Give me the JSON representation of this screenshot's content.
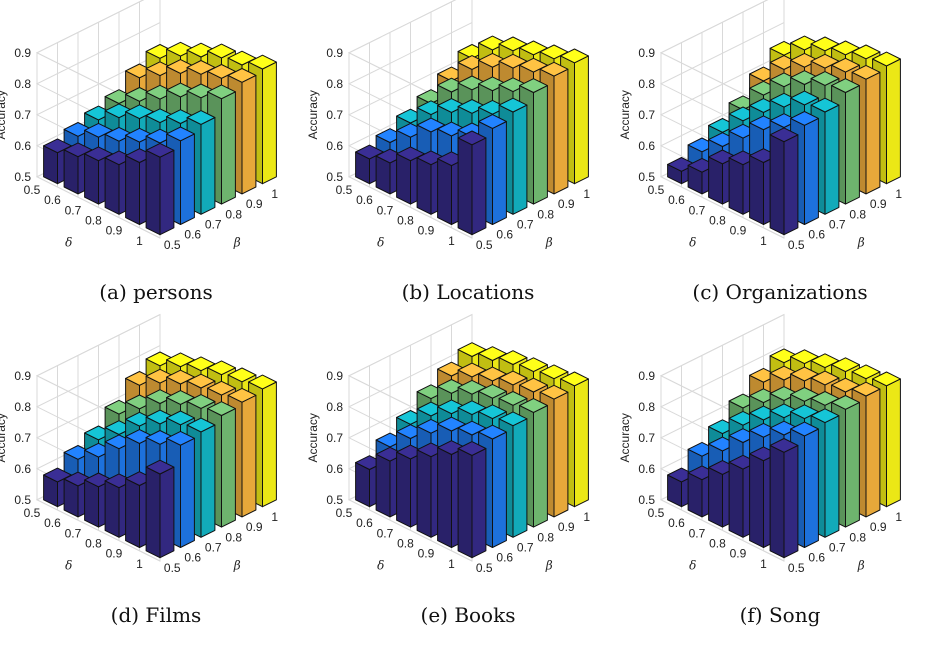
{
  "figure": {
    "colors": [
      "#352a87",
      "#1f77e8",
      "#13b3c3",
      "#74bd74",
      "#f3b13d",
      "#f7f317"
    ],
    "edge_color": "#111111",
    "grid_color": "#d9d9d9"
  },
  "chart_data": [
    {
      "type": "bar3d",
      "caption": "(a) persons",
      "zlabel": "Accuracy",
      "xlabel": "β",
      "ylabel": "δ",
      "beta": [
        0.5,
        0.6,
        0.7,
        0.8,
        0.9,
        1
      ],
      "delta": [
        1,
        0.9,
        0.8,
        0.7,
        0.6,
        0.5
      ],
      "zlim": [
        0.5,
        0.9
      ],
      "zticks": [
        0.5,
        0.6,
        0.7,
        0.8,
        0.9
      ],
      "grid": true,
      "values": [
        [
          0.75,
          0.77,
          0.79,
          0.84,
          0.86,
          0.87
        ],
        [
          0.7,
          0.73,
          0.76,
          0.81,
          0.84,
          0.85
        ],
        [
          0.66,
          0.7,
          0.73,
          0.78,
          0.82,
          0.84
        ],
        [
          0.64,
          0.67,
          0.71,
          0.74,
          0.79,
          0.81
        ],
        [
          0.62,
          0.65,
          0.68,
          0.7,
          0.75,
          0.78
        ],
        [
          0.6,
          0.62,
          0.64,
          0.66,
          0.71,
          0.74
        ]
      ]
    },
    {
      "type": "bar3d",
      "caption": "(b) Locations",
      "zlabel": "Accuracy",
      "xlabel": "β",
      "ylabel": "δ",
      "beta": [
        0.5,
        0.6,
        0.7,
        0.8,
        0.9,
        1
      ],
      "delta": [
        1,
        0.9,
        0.8,
        0.7,
        0.6,
        0.5
      ],
      "zlim": [
        0.5,
        0.9
      ],
      "zticks": [
        0.5,
        0.6,
        0.7,
        0.8,
        0.9
      ],
      "grid": true,
      "values": [
        [
          0.79,
          0.81,
          0.83,
          0.86,
          0.88,
          0.89
        ],
        [
          0.69,
          0.75,
          0.79,
          0.83,
          0.86,
          0.87
        ],
        [
          0.66,
          0.72,
          0.76,
          0.8,
          0.84,
          0.85
        ],
        [
          0.64,
          0.7,
          0.73,
          0.77,
          0.81,
          0.83
        ],
        [
          0.6,
          0.65,
          0.69,
          0.73,
          0.77,
          0.8
        ],
        [
          0.58,
          0.6,
          0.63,
          0.66,
          0.7,
          0.74
        ]
      ]
    },
    {
      "type": "bar3d",
      "caption": "(c) Organizations",
      "zlabel": "Accuracy",
      "xlabel": "β",
      "ylabel": "δ",
      "beta": [
        0.5,
        0.6,
        0.7,
        0.8,
        0.9,
        1
      ],
      "delta": [
        1,
        0.9,
        0.8,
        0.7,
        0.6,
        0.5
      ],
      "zlim": [
        0.5,
        0.9
      ],
      "zticks": [
        0.5,
        0.6,
        0.7,
        0.8,
        0.9
      ],
      "grid": true,
      "values": [
        [
          0.8,
          0.82,
          0.83,
          0.86,
          0.87,
          0.88
        ],
        [
          0.7,
          0.78,
          0.82,
          0.85,
          0.86,
          0.87
        ],
        [
          0.66,
          0.74,
          0.78,
          0.82,
          0.84,
          0.85
        ],
        [
          0.63,
          0.68,
          0.73,
          0.78,
          0.81,
          0.83
        ],
        [
          0.57,
          0.62,
          0.67,
          0.72,
          0.77,
          0.8
        ],
        [
          0.54,
          0.57,
          0.6,
          0.64,
          0.7,
          0.75
        ]
      ]
    },
    {
      "type": "bar3d",
      "caption": "(d) Films",
      "zlabel": "Accuracy",
      "xlabel": "β",
      "ylabel": "δ",
      "beta": [
        0.5,
        0.6,
        0.7,
        0.8,
        0.9,
        1
      ],
      "delta": [
        1,
        0.9,
        0.8,
        0.7,
        0.6,
        0.5
      ],
      "zlim": [
        0.5,
        0.9
      ],
      "zticks": [
        0.5,
        0.6,
        0.7,
        0.8,
        0.9
      ],
      "grid": true,
      "values": [
        [
          0.77,
          0.83,
          0.84,
          0.86,
          0.87,
          0.88
        ],
        [
          0.7,
          0.8,
          0.83,
          0.85,
          0.86,
          0.87
        ],
        [
          0.66,
          0.77,
          0.8,
          0.83,
          0.85,
          0.86
        ],
        [
          0.63,
          0.72,
          0.76,
          0.8,
          0.83,
          0.84
        ],
        [
          0.6,
          0.66,
          0.7,
          0.75,
          0.8,
          0.82
        ],
        [
          0.58,
          0.62,
          0.65,
          0.7,
          0.76,
          0.79
        ]
      ]
    },
    {
      "type": "bar3d",
      "caption": "(e) Books",
      "zlabel": "Accuracy",
      "xlabel": "β",
      "ylabel": "δ",
      "beta": [
        0.5,
        0.6,
        0.7,
        0.8,
        0.9,
        1
      ],
      "delta": [
        1,
        0.9,
        0.8,
        0.7,
        0.6,
        0.5
      ],
      "zlim": [
        0.5,
        0.9
      ],
      "zticks": [
        0.5,
        0.6,
        0.7,
        0.8,
        0.9
      ],
      "grid": true,
      "values": [
        [
          0.83,
          0.85,
          0.86,
          0.87,
          0.88,
          0.89
        ],
        [
          0.8,
          0.83,
          0.85,
          0.86,
          0.87,
          0.88
        ],
        [
          0.76,
          0.81,
          0.83,
          0.85,
          0.86,
          0.87
        ],
        [
          0.72,
          0.77,
          0.8,
          0.83,
          0.84,
          0.86
        ],
        [
          0.68,
          0.72,
          0.76,
          0.8,
          0.82,
          0.84
        ],
        [
          0.62,
          0.66,
          0.7,
          0.75,
          0.79,
          0.82
        ]
      ]
    },
    {
      "type": "bar3d",
      "caption": "(f) Song",
      "zlabel": "Accuracy",
      "xlabel": "β",
      "ylabel": "δ",
      "beta": [
        0.5,
        0.6,
        0.7,
        0.8,
        0.9,
        1
      ],
      "delta": [
        1,
        0.9,
        0.8,
        0.7,
        0.6,
        0.5
      ],
      "zlim": [
        0.5,
        0.9
      ],
      "zticks": [
        0.5,
        0.6,
        0.7,
        0.8,
        0.9
      ],
      "grid": true,
      "values": [
        [
          0.84,
          0.86,
          0.87,
          0.88,
          0.89,
          0.89
        ],
        [
          0.78,
          0.83,
          0.85,
          0.86,
          0.87,
          0.88
        ],
        [
          0.72,
          0.79,
          0.82,
          0.84,
          0.86,
          0.87
        ],
        [
          0.67,
          0.74,
          0.78,
          0.81,
          0.84,
          0.85
        ],
        [
          0.62,
          0.68,
          0.73,
          0.77,
          0.81,
          0.83
        ],
        [
          0.58,
          0.63,
          0.67,
          0.72,
          0.77,
          0.8
        ]
      ]
    }
  ]
}
